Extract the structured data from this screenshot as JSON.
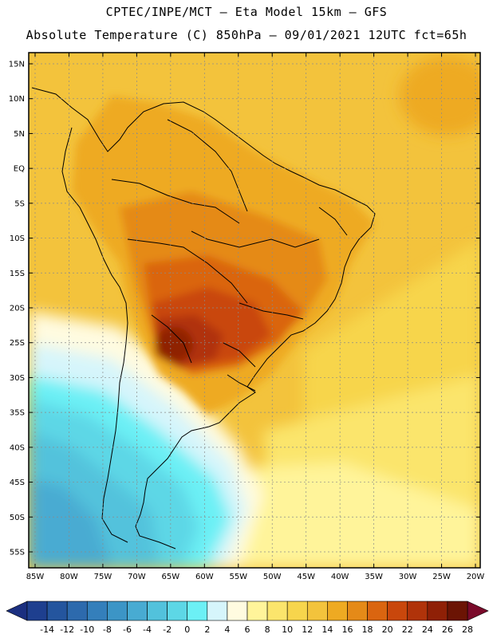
{
  "header": {
    "line1": "CPTEC/INPE/MCT —  Eta Model 15km — GFS",
    "line2": "Absolute Temperature (C) 850hPa — 09/01/2021 12UTC fct=65h"
  },
  "axes": {
    "lat_labels": [
      "15N",
      "10N",
      "5N",
      "EQ",
      "5S",
      "10S",
      "15S",
      "20S",
      "25S",
      "30S",
      "35S",
      "40S",
      "45S",
      "50S",
      "55S"
    ],
    "lon_labels": [
      "85W",
      "80W",
      "75W",
      "70W",
      "65W",
      "60W",
      "55W",
      "50W",
      "45W",
      "40W",
      "35W",
      "30W",
      "25W",
      "20W"
    ]
  },
  "colorbar": {
    "labels": [
      "-14",
      "-12",
      "-10",
      "-8",
      "-6",
      "-4",
      "-2",
      "0",
      "2",
      "4",
      "6",
      "8",
      "10",
      "12",
      "14",
      "16",
      "18",
      "20",
      "22",
      "24",
      "26",
      "28"
    ],
    "colors": [
      "#1e3f8f",
      "#24559e",
      "#2d6aad",
      "#347fbb",
      "#3c95c6",
      "#48abd2",
      "#52c2dc",
      "#5dd7e6",
      "#6cf0f5",
      "#d6f5fb",
      "#fffbe0",
      "#fff49a",
      "#fbe56c",
      "#f7d54c",
      "#f3c33c",
      "#eeaa22",
      "#e58a18",
      "#da6510",
      "#c9470c",
      "#b0330a",
      "#8f2006",
      "#6b1404"
    ],
    "low_arrow_color": "#1b2f80",
    "high_arrow_color": "#7a0a2a"
  },
  "map_colors": {
    "ocean_warm": "#f3c33c",
    "ocean_mid": "#f7d54c",
    "ocean_light": "#fbe56c",
    "pale": "#fff49a",
    "cream": "#fffbe0",
    "cyan_light": "#d6f5fb",
    "cyan": "#6cf0f5",
    "cyan_mid": "#5dd7e6",
    "blue1": "#52c2dc",
    "blue2": "#48abd2",
    "land_orange": "#eeaa22",
    "land_dark": "#e58a18",
    "hot1": "#da6510",
    "hot2": "#c9470c",
    "hot3": "#b0330a",
    "hot4": "#8f2006"
  }
}
